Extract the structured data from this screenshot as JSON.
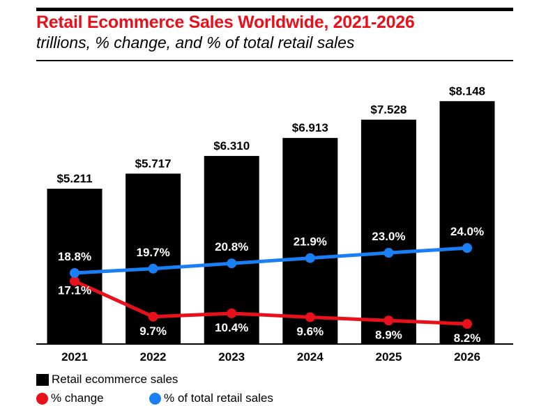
{
  "chart_data": {
    "type": "bar",
    "title": "Retail Ecommerce Sales Worldwide, 2021-2026",
    "subtitle": "trillions, % change, and % of total retail sales",
    "categories": [
      "2021",
      "2022",
      "2023",
      "2024",
      "2025",
      "2026"
    ],
    "bar_series": {
      "name": "Retail ecommerce sales",
      "values": [
        5.211,
        5.717,
        6.31,
        6.913,
        7.528,
        8.148
      ],
      "labels": [
        "$5.211",
        "$5.717",
        "$6.310",
        "$6.913",
        "$7.528",
        "$8.148"
      ],
      "color": "#000000"
    },
    "line_series": [
      {
        "name": "% change",
        "values": [
          17.1,
          9.7,
          10.4,
          9.6,
          8.9,
          8.2
        ],
        "labels": [
          "17.1%",
          "9.7%",
          "10.4%",
          "9.6%",
          "8.9%",
          "8.2%"
        ],
        "color": "#e8111b"
      },
      {
        "name": "% of total retail sales",
        "values": [
          18.8,
          19.7,
          20.8,
          21.9,
          23.0,
          24.0
        ],
        "labels": [
          "18.8%",
          "19.7%",
          "20.8%",
          "21.9%",
          "23.0%",
          "24.0%"
        ],
        "color": "#1a7ff5"
      }
    ],
    "grid": false,
    "legend": "bottom-left"
  }
}
